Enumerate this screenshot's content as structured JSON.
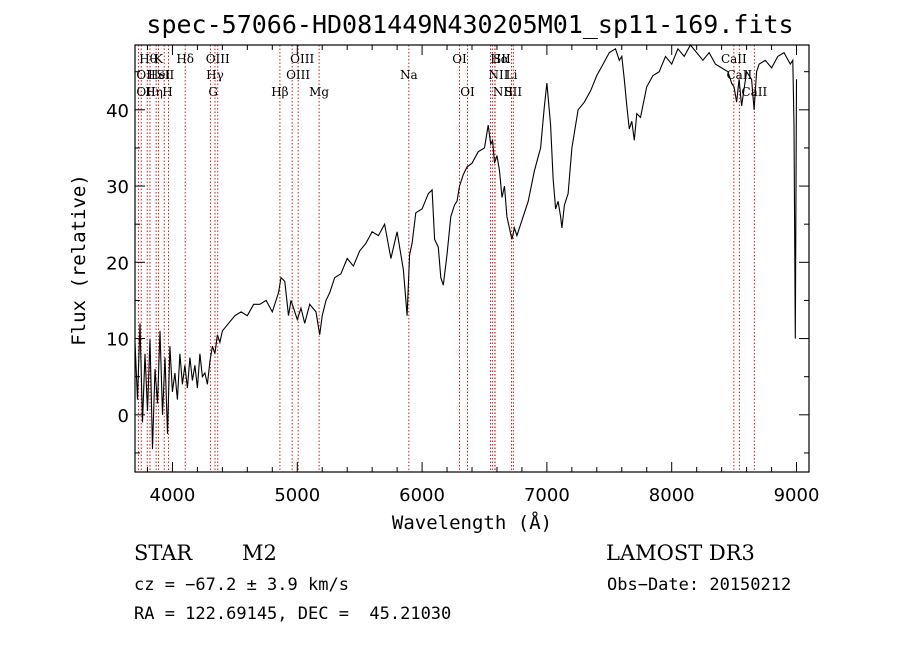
{
  "chart_data": {
    "type": "line",
    "title": "spec-57066-HD081449N430205M01_sp11-169.fits",
    "xlabel": "Wavelength (Å)",
    "ylabel": "Flux (relative)",
    "xlim": [
      3700,
      9100
    ],
    "ylim": [
      -7.5,
      48.5
    ],
    "xticks": [
      4000,
      5000,
      6000,
      7000,
      8000,
      9000
    ],
    "yticks": [
      0,
      10,
      20,
      30,
      40
    ],
    "series": [
      {
        "name": "flux",
        "x": [
          3700,
          3720,
          3740,
          3760,
          3780,
          3800,
          3820,
          3840,
          3860,
          3880,
          3900,
          3920,
          3940,
          3960,
          3980,
          4000,
          4020,
          4040,
          4060,
          4080,
          4100,
          4120,
          4140,
          4160,
          4180,
          4200,
          4220,
          4240,
          4260,
          4280,
          4300,
          4320,
          4340,
          4360,
          4380,
          4400,
          4450,
          4500,
          4550,
          4600,
          4650,
          4700,
          4750,
          4800,
          4850,
          4870,
          4900,
          4930,
          4950,
          4980,
          5000,
          5030,
          5060,
          5100,
          5150,
          5180,
          5200,
          5230,
          5260,
          5300,
          5350,
          5400,
          5450,
          5500,
          5550,
          5600,
          5650,
          5700,
          5750,
          5800,
          5850,
          5880,
          5900,
          5920,
          5950,
          6000,
          6050,
          6080,
          6100,
          6130,
          6150,
          6170,
          6200,
          6230,
          6260,
          6280,
          6300,
          6330,
          6360,
          6400,
          6450,
          6500,
          6530,
          6550,
          6565,
          6580,
          6600,
          6620,
          6640,
          6660,
          6680,
          6700,
          6720,
          6740,
          6760,
          6800,
          6850,
          6900,
          6950,
          6980,
          7000,
          7030,
          7050,
          7070,
          7090,
          7110,
          7120,
          7140,
          7170,
          7200,
          7250,
          7300,
          7350,
          7400,
          7450,
          7500,
          7550,
          7580,
          7600,
          7620,
          7640,
          7660,
          7680,
          7700,
          7720,
          7750,
          7800,
          7850,
          7900,
          7950,
          8000,
          8050,
          8100,
          8150,
          8200,
          8250,
          8300,
          8350,
          8400,
          8450,
          8480,
          8500,
          8520,
          8540,
          8560,
          8600,
          8640,
          8660,
          8680,
          8700,
          8750,
          8800,
          8850,
          8900,
          8950,
          8970,
          8980,
          8990,
          9000
        ],
        "values": [
          9.5,
          2.0,
          12.0,
          -1.0,
          8.0,
          0.5,
          10.0,
          -4.5,
          6.0,
          1.5,
          11.0,
          0.0,
          7.5,
          -2.5,
          9.0,
          3.0,
          5.5,
          2.0,
          8.0,
          4.0,
          6.5,
          3.5,
          7.5,
          4.5,
          6.5,
          3.5,
          8.0,
          5.0,
          5.5,
          4.0,
          7.0,
          9.0,
          8.0,
          10.5,
          9.5,
          11.0,
          12.0,
          13.0,
          13.5,
          13.0,
          14.5,
          14.5,
          15.0,
          13.5,
          16.0,
          18.0,
          17.5,
          13.0,
          15.0,
          13.5,
          12.5,
          14.0,
          12.0,
          14.5,
          13.5,
          10.5,
          13.0,
          15.0,
          16.0,
          18.0,
          18.5,
          20.5,
          19.5,
          21.5,
          22.5,
          24.0,
          23.5,
          25.0,
          20.5,
          24.0,
          19.0,
          13.0,
          21.0,
          22.5,
          26.5,
          27.0,
          29.0,
          29.5,
          23.0,
          22.0,
          18.0,
          17.0,
          21.0,
          26.0,
          27.5,
          28.0,
          30.0,
          31.5,
          32.5,
          33.0,
          34.5,
          35.0,
          38.0,
          35.5,
          36.0,
          33.0,
          34.0,
          32.0,
          28.5,
          30.0,
          26.0,
          24.5,
          23.0,
          24.5,
          23.5,
          25.5,
          28.0,
          32.0,
          35.0,
          40.5,
          43.5,
          38.0,
          31.0,
          27.0,
          28.0,
          26.0,
          24.5,
          27.5,
          29.0,
          35.0,
          40.0,
          41.0,
          42.5,
          44.5,
          46.0,
          47.5,
          48.0,
          46.5,
          47.0,
          44.0,
          40.5,
          37.5,
          38.5,
          36.0,
          39.5,
          39.0,
          43.0,
          44.5,
          45.0,
          47.0,
          46.0,
          48.0,
          47.0,
          48.5,
          47.5,
          46.5,
          47.5,
          46.0,
          45.5,
          45.0,
          43.5,
          43.0,
          41.0,
          44.0,
          40.5,
          45.0,
          44.0,
          40.0,
          45.0,
          46.0,
          46.5,
          45.5,
          47.0,
          47.5,
          46.0,
          46.5,
          38.0,
          10.0,
          44.0
        ]
      }
    ],
    "lines": [
      {
        "wave": 3727,
        "label": "OII",
        "row": 2,
        "align": "start"
      },
      {
        "wave": 3727,
        "label": "OII",
        "row": 3,
        "align": "start"
      },
      {
        "wave": 3750,
        "label": "Hθ",
        "row": 1,
        "align": "start"
      },
      {
        "wave": 3798,
        "label": "Hη",
        "row": 3,
        "align": "start"
      },
      {
        "wave": 3820,
        "label": "HeI",
        "row": 2,
        "align": "start"
      },
      {
        "wave": 3869,
        "label": "K",
        "row": 1,
        "align": "start"
      },
      {
        "wave": 3889,
        "label": "SII",
        "row": 2,
        "align": "start"
      },
      {
        "wave": 3934,
        "label": "H",
        "row": 3,
        "align": "start"
      },
      {
        "wave": 3969,
        "label": "",
        "row": 0,
        "align": "start"
      },
      {
        "wave": 4102,
        "label": "Hδ",
        "row": 1,
        "align": "middle"
      },
      {
        "wave": 4304,
        "label": "G",
        "row": 3,
        "align": "start"
      },
      {
        "wave": 4341,
        "label": "Hγ",
        "row": 2,
        "align": "middle"
      },
      {
        "wave": 4363,
        "label": "OIII",
        "row": 1,
        "align": "middle"
      },
      {
        "wave": 4861,
        "label": "Hβ",
        "row": 3,
        "align": "middle"
      },
      {
        "wave": 4959,
        "label": "OIII",
        "row": 1,
        "align": "start"
      },
      {
        "wave": 5007,
        "label": "OIII",
        "row": 2,
        "align": "middle"
      },
      {
        "wave": 5175,
        "label": "Mg",
        "row": 3,
        "align": "middle"
      },
      {
        "wave": 5894,
        "label": "Na",
        "row": 2,
        "align": "middle"
      },
      {
        "wave": 6300,
        "label": "OI",
        "row": 1,
        "align": "middle"
      },
      {
        "wave": 6364,
        "label": "OI",
        "row": 3,
        "align": "middle"
      },
      {
        "wave": 6548,
        "label": "NII",
        "row": 2,
        "align": "start"
      },
      {
        "wave": 6563,
        "label": "Hα",
        "row": 1,
        "align": "start"
      },
      {
        "wave": 6583,
        "label": "NII",
        "row": 3,
        "align": "start"
      },
      {
        "wave": 6585,
        "label": "SII",
        "row": 1,
        "align": "start"
      },
      {
        "wave": 6717,
        "label": "Li",
        "row": 2,
        "align": "middle"
      },
      {
        "wave": 6731,
        "label": "SII",
        "row": 3,
        "align": "middle"
      },
      {
        "wave": 8498,
        "label": "CaII",
        "row": 1,
        "align": "middle"
      },
      {
        "wave": 8542,
        "label": "CaII",
        "row": 2,
        "align": "middle"
      },
      {
        "wave": 8662,
        "label": "CaII",
        "row": 3,
        "align": "middle"
      }
    ]
  },
  "info": {
    "object_type": "STAR",
    "subclass": "M2",
    "survey": "LAMOST DR3",
    "cz": "cz = −67.2 ± 3.9 km/s",
    "obs_date": "Obs−Date: 20150212",
    "coords": "RA = 122.69145, DEC =  45.21030"
  },
  "colors": {
    "line_marker": "#cc0000",
    "spectrum": "#000000",
    "axes": "#000000"
  }
}
